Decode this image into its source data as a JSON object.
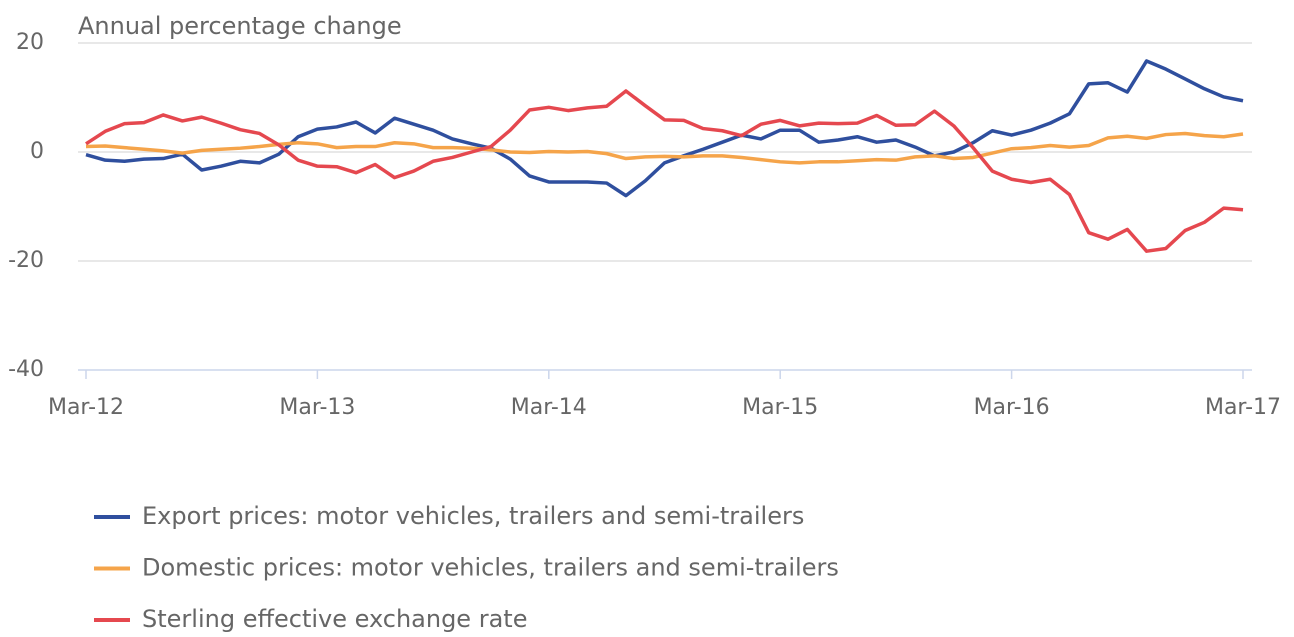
{
  "chart_data": {
    "type": "line",
    "title": "Annual percentage change",
    "categories": [
      "Mar-12",
      null,
      null,
      null,
      null,
      null,
      null,
      null,
      null,
      null,
      null,
      null,
      "Mar-13",
      null,
      null,
      null,
      null,
      null,
      null,
      null,
      null,
      null,
      null,
      null,
      "Mar-14",
      null,
      null,
      null,
      null,
      null,
      null,
      null,
      null,
      null,
      null,
      null,
      "Mar-15",
      null,
      null,
      null,
      null,
      null,
      null,
      null,
      null,
      null,
      null,
      null,
      "Mar-16",
      null,
      null,
      null,
      null,
      null,
      null,
      null,
      null,
      null,
      null,
      null,
      "Mar-17"
    ],
    "series": [
      {
        "name": "Export prices: motor vehicles, trailers and semi-trailers",
        "color": "#2f4f9e",
        "values": [
          -0.5,
          -1.5,
          -1.7,
          -1.3,
          -1.2,
          -0.4,
          -3.3,
          -2.6,
          -1.7,
          -2,
          -0.4,
          2.8,
          4.2,
          4.6,
          5.5,
          3.5,
          6.2,
          5.1,
          4,
          2.4,
          1.5,
          0.7,
          -1.3,
          -4.4,
          -5.5,
          -5.5,
          -5.5,
          -5.7,
          -8,
          -5.3,
          -2,
          -0.7,
          0.5,
          1.8,
          3.1,
          2.4,
          4,
          4,
          1.8,
          2.2,
          2.8,
          1.8,
          2.2,
          0.9,
          -0.7,
          0,
          1.7,
          3.9,
          3.1,
          4,
          5.3,
          7,
          12.5,
          12.7,
          11,
          16.7,
          15.2,
          13.4,
          11.6,
          10.1,
          9.4
        ]
      },
      {
        "name": "Domestic prices: motor vehicles, trailers and semi-trailers",
        "color": "#f5a44a",
        "values": [
          1,
          1.1,
          0.8,
          0.5,
          0.2,
          -0.2,
          0.3,
          0.5,
          0.7,
          1,
          1.4,
          1.7,
          1.5,
          0.8,
          1,
          1,
          1.7,
          1.5,
          0.8,
          0.8,
          0.7,
          0.4,
          0,
          -0.1,
          0.1,
          0,
          0.1,
          -0.3,
          -1.2,
          -0.9,
          -0.8,
          -0.9,
          -0.7,
          -0.7,
          -1,
          -1.4,
          -1.8,
          -2,
          -1.8,
          -1.8,
          -1.6,
          -1.4,
          -1.5,
          -0.9,
          -0.7,
          -1.2,
          -1,
          -0.2,
          0.6,
          0.8,
          1.2,
          0.9,
          1.2,
          2.6,
          2.9,
          2.5,
          3.2,
          3.4,
          3,
          2.8,
          3.3
        ]
      },
      {
        "name": "Sterling effective exchange rate",
        "color": "#e5484f",
        "values": [
          1.5,
          3.8,
          5.2,
          5.4,
          6.8,
          5.7,
          6.4,
          5.3,
          4.1,
          3.4,
          1.3,
          -1.5,
          -2.6,
          -2.7,
          -3.8,
          -2.3,
          -4.7,
          -3.5,
          -1.7,
          -1,
          0,
          1,
          4,
          7.7,
          8.2,
          7.6,
          8.1,
          8.4,
          11.2,
          8.5,
          5.9,
          5.8,
          4.3,
          3.9,
          3,
          5.1,
          5.8,
          4.8,
          5.3,
          5.2,
          5.3,
          6.7,
          4.9,
          5,
          7.5,
          4.8,
          0.8,
          -3.5,
          -5,
          -5.6,
          -5,
          -7.8,
          -14.8,
          -16,
          -14.2,
          -18.2,
          -17.7,
          -14.4,
          -12.9,
          -10.3,
          -10.6
        ]
      }
    ],
    "ylim": [
      -40,
      20
    ],
    "yticks": [
      -40,
      -20,
      0,
      20
    ],
    "grid": true
  }
}
